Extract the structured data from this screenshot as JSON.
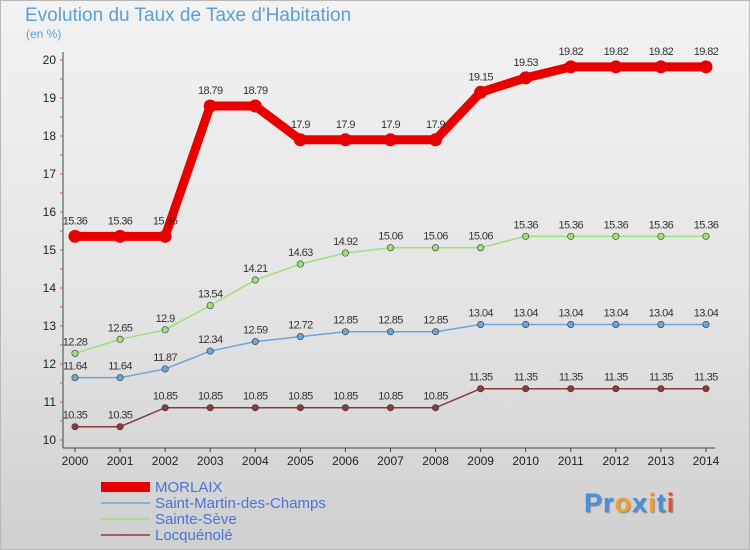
{
  "title": "Evolution du Taux de Taxe d'Habitation",
  "subtitle": "(en %)",
  "logo": {
    "letters": [
      "P",
      "r",
      "o",
      "x",
      "i",
      "t",
      "i"
    ],
    "colors": [
      "#4a90d9",
      "#4a90d9",
      "#f0a030",
      "#4a90d9",
      "#f0a030",
      "#4a90d9",
      "#e8503a"
    ]
  },
  "chart_data": {
    "type": "line",
    "title": "Evolution du Taux de Taxe d'Habitation",
    "ylabel": "(en %)",
    "xlabel": "",
    "x": [
      "2000",
      "2001",
      "2002",
      "2003",
      "2004",
      "2005",
      "2006",
      "2007",
      "2008",
      "2009",
      "2010",
      "2011",
      "2012",
      "2013",
      "2014"
    ],
    "ylim": [
      10,
      20
    ],
    "yticks": [
      "10",
      "11",
      "12",
      "13",
      "14",
      "15",
      "16",
      "17",
      "18",
      "19",
      "20"
    ],
    "grid": false,
    "legend_position": "bottom-left",
    "series": [
      {
        "name": "MORLAIX",
        "color": "#e80000",
        "width": 9,
        "values": [
          15.36,
          15.36,
          15.36,
          18.79,
          18.79,
          17.9,
          17.9,
          17.9,
          17.9,
          19.15,
          19.53,
          19.82,
          19.82,
          19.82,
          19.82
        ],
        "labels": [
          "15.36",
          "15.36",
          "15.36",
          "18.79",
          "18.79",
          "17.9",
          "17.9",
          "17.9",
          "17.9",
          "19.15",
          "19.53",
          "19.82",
          "19.82",
          "19.82",
          "19.82"
        ]
      },
      {
        "name": "Saint-Martin-des-Champs",
        "color": "#6fa4d8",
        "width": 1.5,
        "values": [
          11.64,
          11.64,
          11.87,
          12.34,
          12.59,
          12.72,
          12.85,
          12.85,
          12.85,
          13.04,
          13.04,
          13.04,
          13.04,
          13.04,
          13.04
        ],
        "labels": [
          "11.64",
          "11.64",
          "11.87",
          "12.34",
          "12.59",
          "12.72",
          "12.85",
          "12.85",
          "12.85",
          "13.04",
          "13.04",
          "13.04",
          "13.04",
          "13.04",
          "13.04"
        ]
      },
      {
        "name": "Sainte-Sève",
        "color": "#9ee07a",
        "width": 1.5,
        "values": [
          12.28,
          12.65,
          12.9,
          13.54,
          14.21,
          14.63,
          14.92,
          15.06,
          15.06,
          15.06,
          15.36,
          15.36,
          15.36,
          15.36,
          15.36
        ],
        "labels": [
          "12.28",
          "12.65",
          "12.9",
          "13.54",
          "14.21",
          "14.63",
          "14.92",
          "15.06",
          "15.06",
          "15.06",
          "15.36",
          "15.36",
          "15.36",
          "15.36",
          "15.36"
        ]
      },
      {
        "name": "Locquénolé",
        "color": "#8a3b3b",
        "width": 1.5,
        "values": [
          10.35,
          10.35,
          10.85,
          10.85,
          10.85,
          10.85,
          10.85,
          10.85,
          10.85,
          11.35,
          11.35,
          11.35,
          11.35,
          11.35,
          11.35
        ],
        "labels": [
          "10.35",
          "10.35",
          "10.85",
          "10.85",
          "10.85",
          "10.85",
          "10.85",
          "10.85",
          "10.85",
          "11.35",
          "11.35",
          "11.35",
          "11.35",
          "11.35",
          "11.35"
        ]
      }
    ]
  }
}
